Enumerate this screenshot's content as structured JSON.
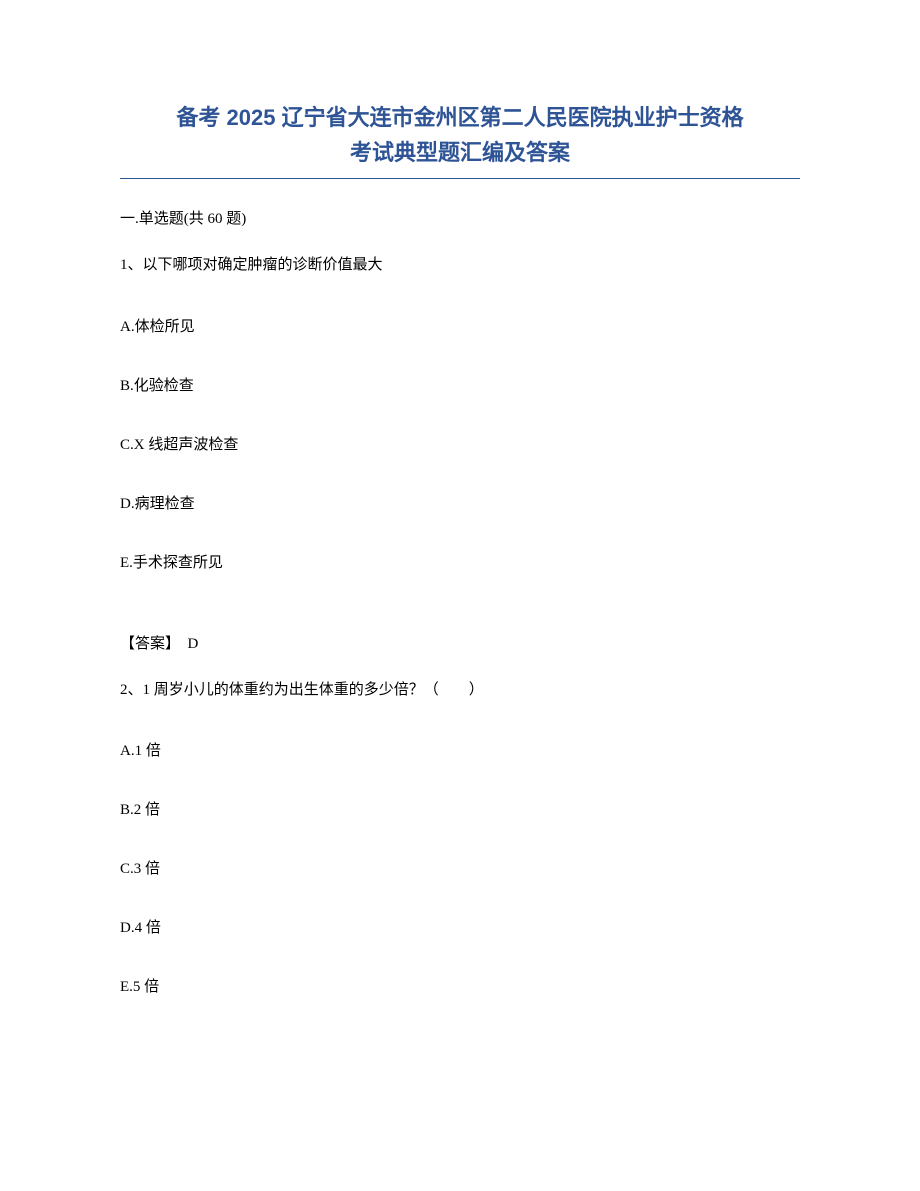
{
  "title": {
    "line1": "备考 2025 辽宁省大连市金州区第二人民医院执业护士资格",
    "line2": "考试典型题汇编及答案",
    "color": "#2e5496",
    "fontsize": 22
  },
  "section": {
    "label": "一.单选题(共 60 题)"
  },
  "questions": [
    {
      "number": "1、",
      "text": "以下哪项对确定肿瘤的诊断价值最大",
      "options": [
        "A.体检所见",
        "B.化验检查",
        "C.X 线超声波检查",
        "D.病理检查",
        "E.手术探查所见"
      ],
      "answer_label": "【答案】",
      "answer_value": "D"
    },
    {
      "number": "2、",
      "text": "1 周岁小儿的体重约为出生体重的多少倍？（　　）",
      "options": [
        "A.1 倍",
        "B.2 倍",
        "C.3 倍",
        "D.4 倍",
        "E.5 倍"
      ]
    }
  ],
  "colors": {
    "title": "#2e5496",
    "text": "#000000",
    "background": "#ffffff",
    "underline": "#2e5496"
  }
}
